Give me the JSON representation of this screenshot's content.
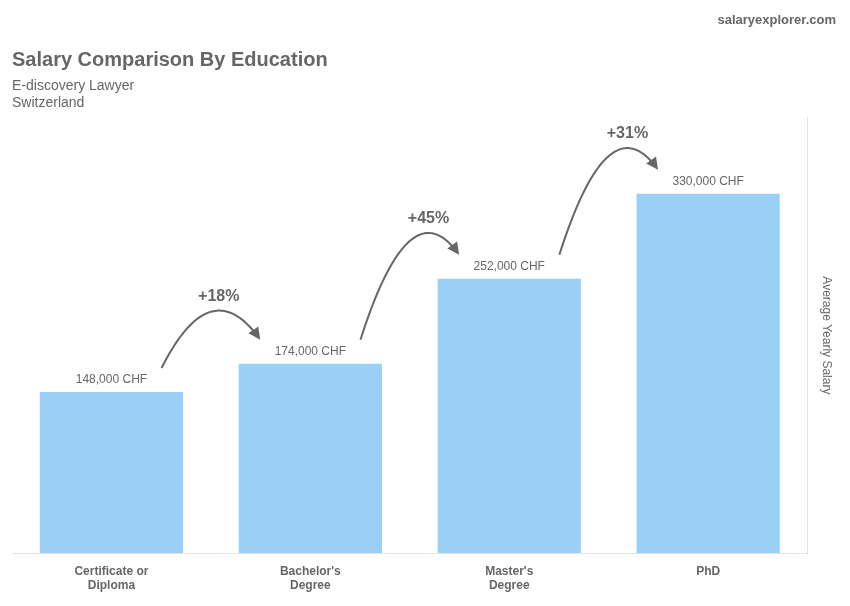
{
  "chart_data": {
    "type": "bar",
    "title": "Salary Comparison By Education",
    "subtitle": [
      "E-discovery Lawyer",
      "Switzerland"
    ],
    "brand": "salaryexplorer.com",
    "ylabel": "Average Yearly Salary",
    "categories": [
      "Certificate or\nDiploma",
      "Bachelor's\nDegree",
      "Master's\nDegree",
      "PhD"
    ],
    "values": [
      148000,
      174000,
      252000,
      330000
    ],
    "value_labels": [
      "148,000 CHF",
      "174,000 CHF",
      "252,000 CHF",
      "330,000 CHF"
    ],
    "data_labels": true,
    "annotations": [
      "+18%",
      "+45%",
      "+31%"
    ],
    "ylim": [
      0,
      400000
    ],
    "yticks": [],
    "tick_labels": "x",
    "grid": false
  }
}
